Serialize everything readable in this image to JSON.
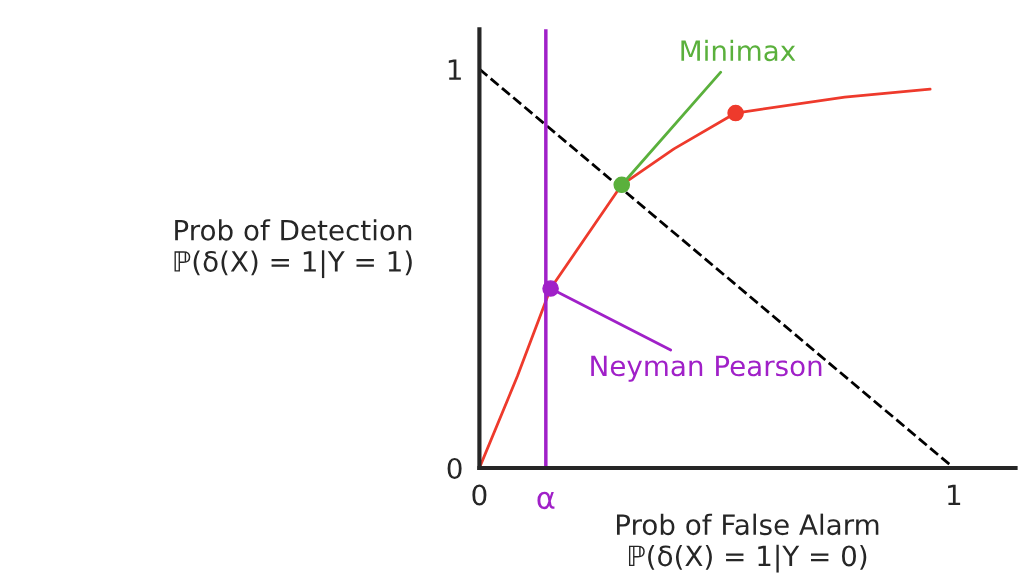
{
  "chart_data": {
    "type": "line",
    "xlabel": "Prob of False Alarm\nℙ(δ(X) = 1|Y = 0)",
    "ylabel": "Prob of Detection\nℙ(δ(X) = 1|Y = 1)",
    "xlim": [
      0,
      1.13
    ],
    "ylim": [
      0,
      1.1
    ],
    "xticks": [
      0,
      1
    ],
    "yticks": [
      0,
      1
    ],
    "grid": false,
    "legend": false,
    "series": [
      {
        "color": "#ee3a2c",
        "line_style": "solid",
        "x": [
          0,
          0.08,
          0.15,
          0.3,
          0.41,
          0.54,
          0.77,
          0.95
        ],
        "values": [
          0,
          0.23,
          0.45,
          0.71,
          0.8,
          0.89,
          0.93,
          0.95
        ]
      },
      {
        "color": "#000000",
        "line_style": "dashed",
        "x": [
          0,
          1
        ],
        "values": [
          1,
          0
        ]
      },
      {
        "type": "scatter",
        "color": "#a020c8",
        "x": [
          0.15
        ],
        "values": [
          0.45
        ]
      },
      {
        "type": "scatter",
        "color": "#5ab03c",
        "x": [
          0.3
        ],
        "values": [
          0.71
        ]
      },
      {
        "type": "scatter",
        "color": "#ee3a2c",
        "x": [
          0.54
        ],
        "values": [
          0.89
        ]
      }
    ],
    "ref_lines": [
      {
        "axis": "x",
        "value": 0.14,
        "label": "α",
        "color": "#a020c8"
      }
    ],
    "annotations": [
      {
        "text": "Neyman Pearson",
        "x": 0.15,
        "y": 0.45
      },
      {
        "text": "Minimax",
        "x": 0.3,
        "y": 0.71
      }
    ]
  }
}
